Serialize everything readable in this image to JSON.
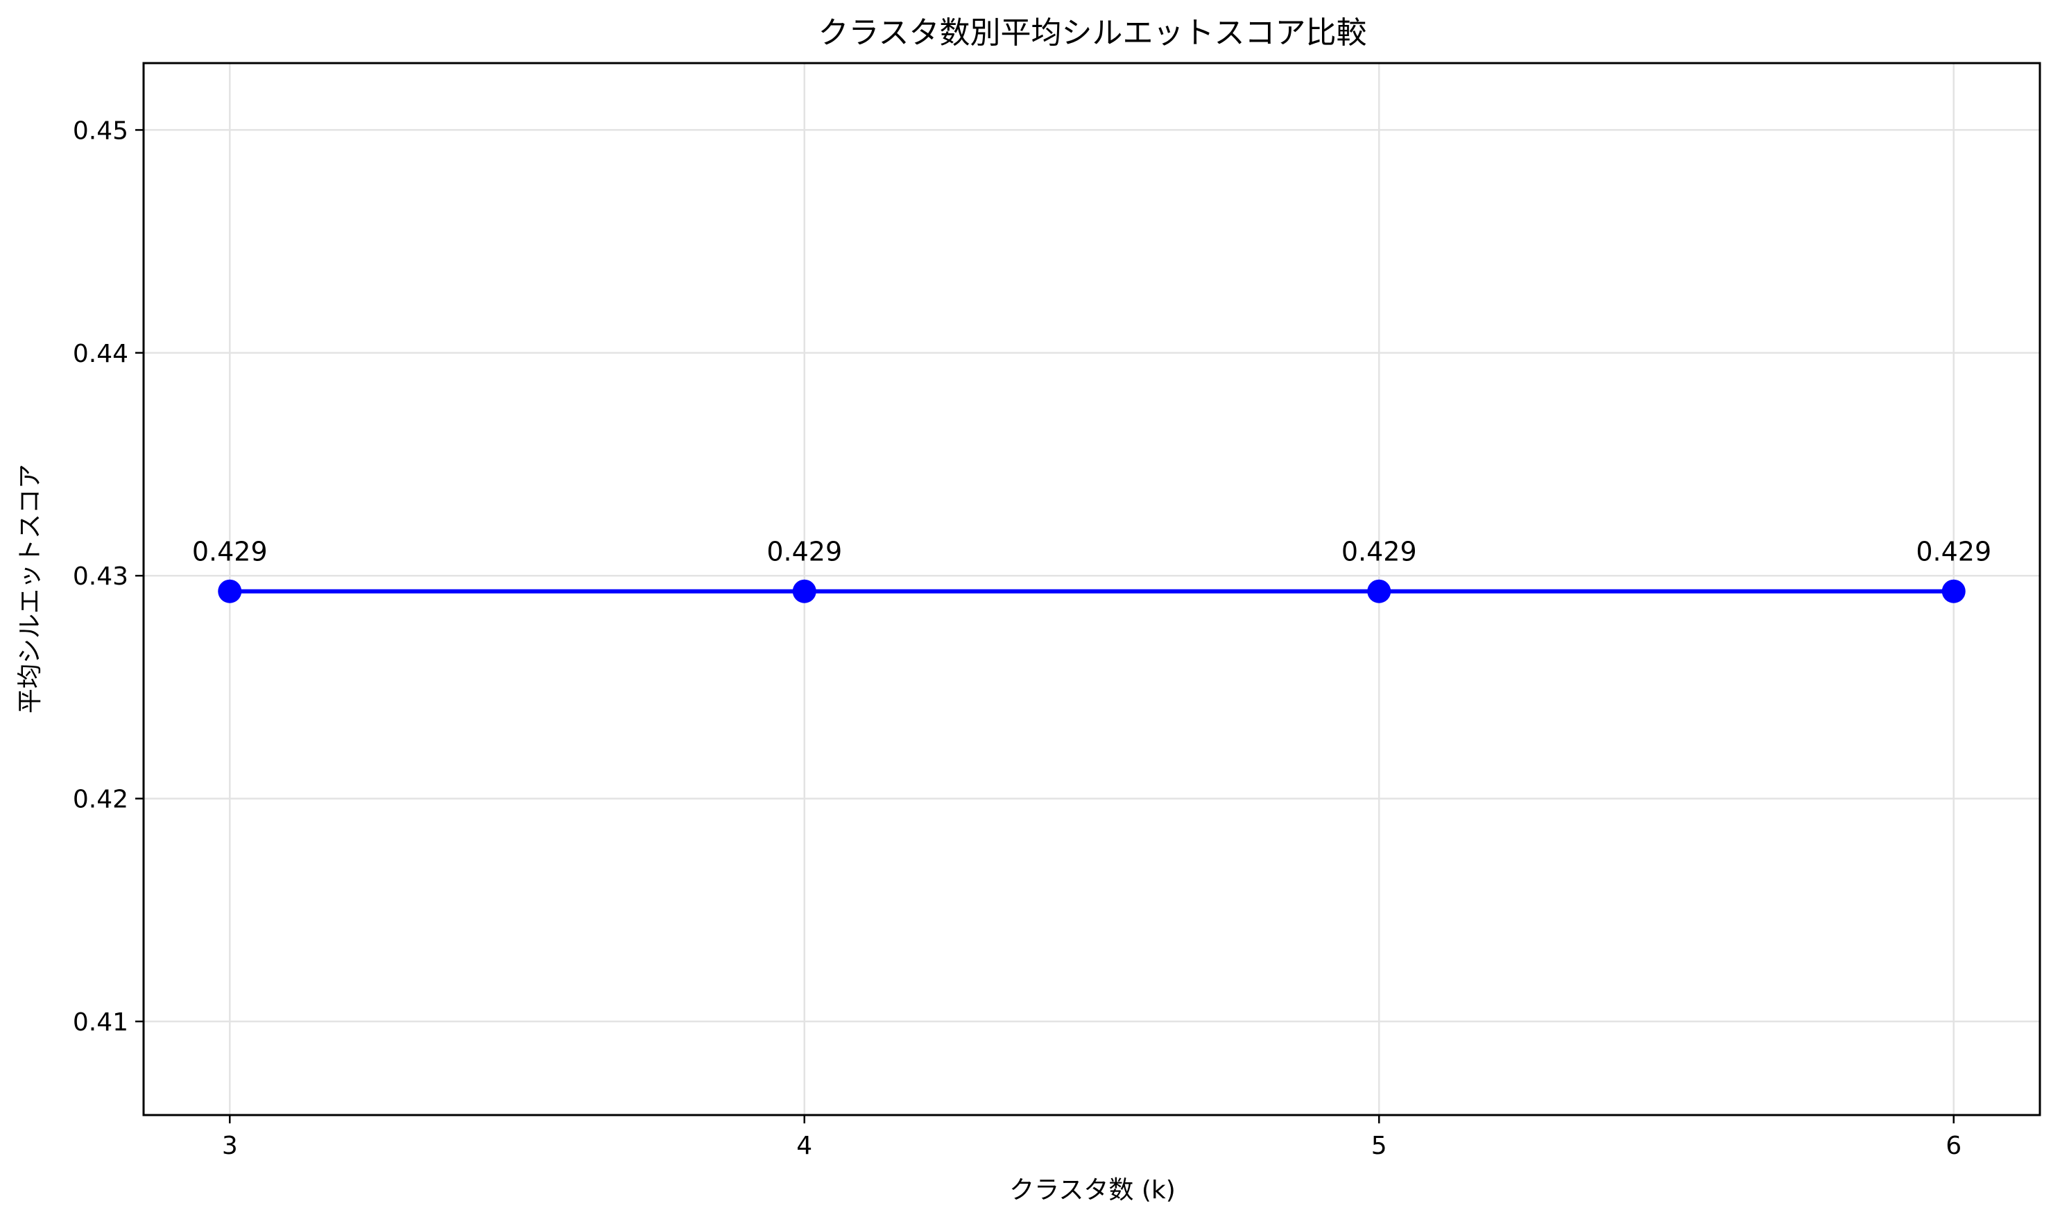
{
  "chart_data": {
    "type": "line",
    "title": "クラスタ数別平均シルエットスコア比較",
    "xlabel": "クラスタ数 (k)",
    "ylabel": "平均シルエットスコア",
    "x": [
      3,
      4,
      5,
      6
    ],
    "x_tick_labels": [
      "3",
      "4",
      "5",
      "6"
    ],
    "xlim": [
      2.85,
      6.15
    ],
    "ylim": [
      0.4058,
      0.453
    ],
    "y_ticks": [
      0.41,
      0.42,
      0.43,
      0.44,
      0.45
    ],
    "y_tick_labels": [
      "0.41",
      "0.42",
      "0.43",
      "0.44",
      "0.45"
    ],
    "series": [
      {
        "values": [
          0.4293,
          0.4293,
          0.4293,
          0.4293
        ],
        "data_labels": [
          "0.429",
          "0.429",
          "0.429",
          "0.429"
        ],
        "color": "#0000ff",
        "marker": "circle"
      }
    ],
    "grid": true,
    "legend": "none"
  }
}
